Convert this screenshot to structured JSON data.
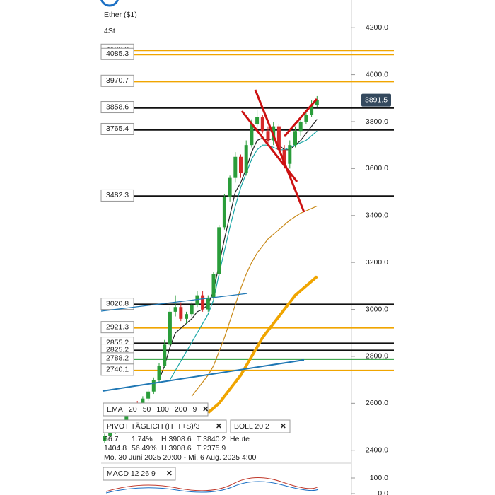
{
  "chart_data": {
    "type": "candlestick",
    "title": "Ether ($1)",
    "subtitle": "4St",
    "ylim": [
      2360,
      4300
    ],
    "yticks": [
      {
        "value": 4200,
        "label": "4200.0"
      },
      {
        "value": 4000,
        "label": "4000.0"
      },
      {
        "value": 3800,
        "label": "3800.0"
      },
      {
        "value": 3600,
        "label": "3600.0"
      },
      {
        "value": 3400,
        "label": "3400.0"
      },
      {
        "value": 3200,
        "label": "3200.0"
      },
      {
        "value": 3000,
        "label": "3000.0"
      },
      {
        "value": 2800,
        "label": "2800.0"
      },
      {
        "value": 2600,
        "label": "2600.0"
      },
      {
        "value": 2400,
        "label": "2400.0"
      }
    ],
    "up_color": "#2a9d3a",
    "down_color": "#d62828",
    "candles": {
      "open": [
        2440,
        2460,
        2480,
        2520,
        2500,
        2560,
        2600,
        2580,
        2620,
        2650,
        2700,
        2760,
        2850,
        2990,
        3010,
        2960,
        2980,
        3020,
        3060,
        3000,
        3050,
        3150,
        3350,
        3480,
        3560,
        3650,
        3580,
        3700,
        3790,
        3820,
        3760,
        3720,
        3780,
        3680,
        3620,
        3700,
        3760,
        3800,
        3830,
        3870
      ],
      "high": [
        2470,
        2490,
        2530,
        2530,
        2570,
        2610,
        2610,
        2630,
        2660,
        2710,
        2770,
        2870,
        3010,
        3060,
        3030,
        2990,
        3030,
        3080,
        3080,
        3060,
        3160,
        3360,
        3490,
        3570,
        3670,
        3660,
        3720,
        3810,
        3850,
        3830,
        3780,
        3800,
        3790,
        3700,
        3720,
        3780,
        3820,
        3850,
        3890,
        3908.6
      ],
      "low": [
        2430,
        2450,
        2470,
        2490,
        2490,
        2550,
        2570,
        2570,
        2610,
        2640,
        2690,
        2750,
        2840,
        2970,
        2950,
        2940,
        2970,
        3010,
        2990,
        2990,
        3040,
        3140,
        3340,
        3460,
        3540,
        3560,
        3570,
        3690,
        3770,
        3750,
        3700,
        3700,
        3660,
        3600,
        3600,
        3690,
        3740,
        3790,
        3820,
        3860
      ],
      "close": [
        2460,
        2480,
        2520,
        2500,
        2560,
        2600,
        2580,
        2620,
        2650,
        2700,
        2760,
        2850,
        2990,
        3010,
        2960,
        2980,
        3020,
        3060,
        3000,
        3050,
        3150,
        3350,
        3480,
        3560,
        3650,
        3580,
        3700,
        3790,
        3820,
        3760,
        3720,
        3780,
        3680,
        3620,
        3700,
        3760,
        3800,
        3830,
        3870,
        3891.5
      ]
    },
    "series": [
      {
        "name": "EMA 20",
        "color": "#222222",
        "values": [
          null,
          null,
          null,
          null,
          null,
          null,
          null,
          null,
          null,
          null,
          2700,
          2760,
          2840,
          2900,
          2920,
          2940,
          2960,
          2990,
          3000,
          3020,
          3080,
          3190,
          3300,
          3400,
          3500,
          3540,
          3600,
          3670,
          3720,
          3730,
          3720,
          3730,
          3700,
          3680,
          3680,
          3700,
          3720,
          3750,
          3780,
          3810
        ]
      },
      {
        "name": "EMA 50",
        "color": "#1aa7a7",
        "values": [
          null,
          null,
          null,
          null,
          null,
          null,
          null,
          null,
          null,
          null,
          null,
          null,
          2700,
          2740,
          2780,
          2820,
          2860,
          2900,
          2940,
          2980,
          3040,
          3150,
          3250,
          3350,
          3440,
          3520,
          3580,
          3640,
          3680,
          3700,
          3700,
          3690,
          3680,
          3680,
          3690,
          3700,
          3710,
          3720,
          3740,
          3760
        ]
      },
      {
        "name": "EMA 100",
        "color": "#c98a1a",
        "values": [
          null,
          null,
          null,
          null,
          null,
          null,
          null,
          null,
          null,
          null,
          null,
          null,
          null,
          null,
          null,
          null,
          2630,
          2660,
          2690,
          2720,
          2760,
          2820,
          2880,
          2950,
          3020,
          3090,
          3150,
          3200,
          3240,
          3270,
          3300,
          3320,
          3340,
          3360,
          3380,
          3395,
          3410,
          3420,
          3430,
          3440
        ]
      },
      {
        "name": "EMA 200",
        "color": "#f0a500",
        "values": [
          null,
          null,
          null,
          null,
          null,
          null,
          null,
          null,
          null,
          null,
          null,
          null,
          null,
          null,
          null,
          null,
          null,
          null,
          null,
          2560,
          2580,
          2600,
          2630,
          2660,
          2690,
          2720,
          2760,
          2800,
          2840,
          2880,
          2910,
          2940,
          2970,
          3000,
          3030,
          3060,
          3080,
          3100,
          3120,
          3140
        ]
      }
    ],
    "levels": [
      {
        "value": 4103.3,
        "color": "#f0a500"
      },
      {
        "value": 4085.3,
        "color": "#f0a500"
      },
      {
        "value": 3970.7,
        "color": "#f0a500"
      },
      {
        "value": 3858.6,
        "color": "#111111"
      },
      {
        "value": 3765.4,
        "color": "#111111"
      },
      {
        "value": 3482.3,
        "color": "#111111"
      },
      {
        "value": 3020.8,
        "color": "#111111"
      },
      {
        "value": 2921.3,
        "color": "#f0a500"
      },
      {
        "value": 2855.2,
        "color": "#111111"
      },
      {
        "value": 2825.2,
        "color": "#111111"
      },
      {
        "value": 2788.2,
        "color": "#2a9d3a"
      },
      {
        "value": 2740.1,
        "color": "#f0a500"
      }
    ],
    "last_price": 3891.5,
    "ema_legend": {
      "label": "EMA",
      "items": [
        {
          "name": "20",
          "color": "#5a2d82"
        },
        {
          "name": "50",
          "color": "#1aa7a7"
        },
        {
          "name": "100",
          "color": "#e9a000"
        },
        {
          "name": "200",
          "color": "#e9a000"
        },
        {
          "name": "9",
          "color": "#20c0c0"
        }
      ]
    },
    "pivot_label": "PIVOT  TÄGLICH  (H+T+S)/3",
    "boll_label": "BOLL  20  2",
    "close_icon": "✕",
    "info_rows": [
      [
        "66.7",
        "1.74%",
        "H 3908.6",
        "T 3840.2",
        "Heute"
      ],
      [
        "1404.8",
        "56.49%",
        "H 3908.6",
        "T 2375.9"
      ]
    ],
    "date_range": "Mo. 30 Juni 2025 20:00 - Mi. 6 Aug. 2025 4:00",
    "macd_label": "MACD  12  26  9",
    "macd_yticks": [
      {
        "value": 100,
        "label": "100.0"
      },
      {
        "value": 0,
        "label": "0.0"
      }
    ]
  }
}
